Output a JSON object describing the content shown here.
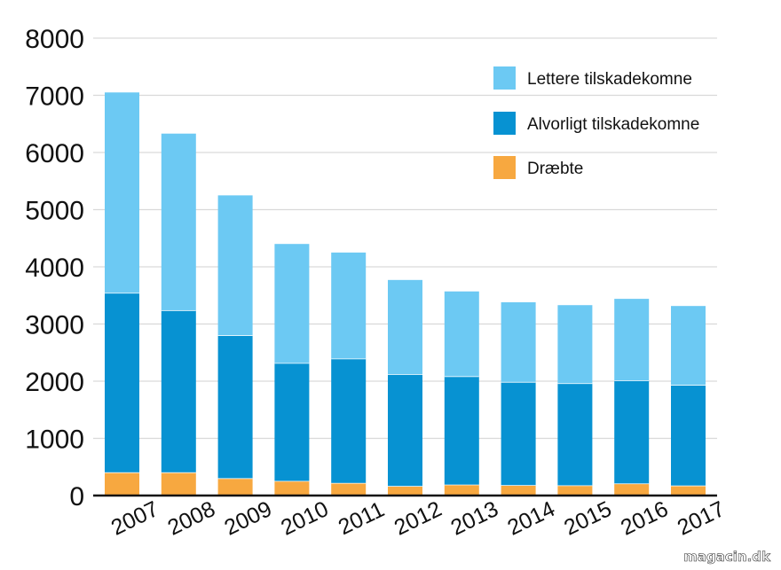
{
  "chart_data": {
    "type": "bar",
    "stacked": true,
    "categories": [
      "2007",
      "2008",
      "2009",
      "2010",
      "2011",
      "2012",
      "2013",
      "2014",
      "2015",
      "2016",
      "2017"
    ],
    "series": [
      {
        "name": "Dræbte",
        "color": "#f7a840",
        "values": [
          406,
          406,
          303,
          255,
          220,
          167,
          191,
          182,
          178,
          211,
          175
        ]
      },
      {
        "name": "Alvorligt tilskadekomne",
        "color": "#0792d2",
        "values": [
          3138,
          2835,
          2500,
          2062,
          2175,
          1955,
          1895,
          1805,
          1785,
          1802,
          1760
        ]
      },
      {
        "name": "Lettere tilskadekomne",
        "color": "#6cc9f3",
        "values": [
          3506,
          3089,
          2447,
          2083,
          1855,
          1648,
          1484,
          1393,
          1367,
          1427,
          1380
        ]
      }
    ],
    "ylim": [
      0,
      8000
    ],
    "yticks": [
      "0",
      "1000",
      "2000",
      "3000",
      "4000",
      "5000",
      "6000",
      "7000",
      "8000"
    ],
    "grid": true,
    "legend_position": "top-right",
    "legend_order": [
      "Lettere tilskadekomne",
      "Alvorligt tilskadekomne",
      "Dræbte"
    ],
    "title": "",
    "xlabel": "",
    "ylabel": ""
  },
  "watermark": "magacin.dk"
}
